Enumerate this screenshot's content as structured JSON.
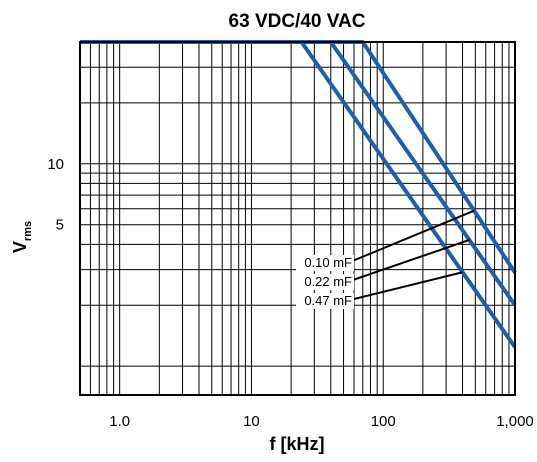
{
  "chart_data": {
    "type": "line",
    "title": "63 VDC/40 VAC",
    "xlabel": "f [kHz]",
    "ylabel": "V",
    "ylabel_subscript": "rms",
    "x_scale": "log",
    "y_scale": "log",
    "xlim": [
      0.5,
      1000
    ],
    "ylim": [
      0.72,
      40
    ],
    "x_ticks": [
      {
        "value": 1,
        "label": "1.0"
      },
      {
        "value": 10,
        "label": "10"
      },
      {
        "value": 100,
        "label": "100"
      },
      {
        "value": 1000,
        "label": "1,000"
      }
    ],
    "y_ticks": [
      {
        "value": 10,
        "label": "10"
      },
      {
        "value": 5,
        "label": "5"
      }
    ],
    "grid": true,
    "line_color": "#1f5fa8",
    "series": [
      {
        "name": "0.10 mF",
        "points": [
          [
            0.5,
            40
          ],
          [
            70,
            40
          ],
          [
            1000,
            2.9
          ]
        ]
      },
      {
        "name": "0.22 mF",
        "points": [
          [
            0.5,
            40
          ],
          [
            40,
            40
          ],
          [
            1000,
            2.0
          ]
        ]
      },
      {
        "name": "0.47 mF",
        "points": [
          [
            0.5,
            40
          ],
          [
            24,
            40
          ],
          [
            1000,
            1.24
          ]
        ]
      }
    ]
  }
}
